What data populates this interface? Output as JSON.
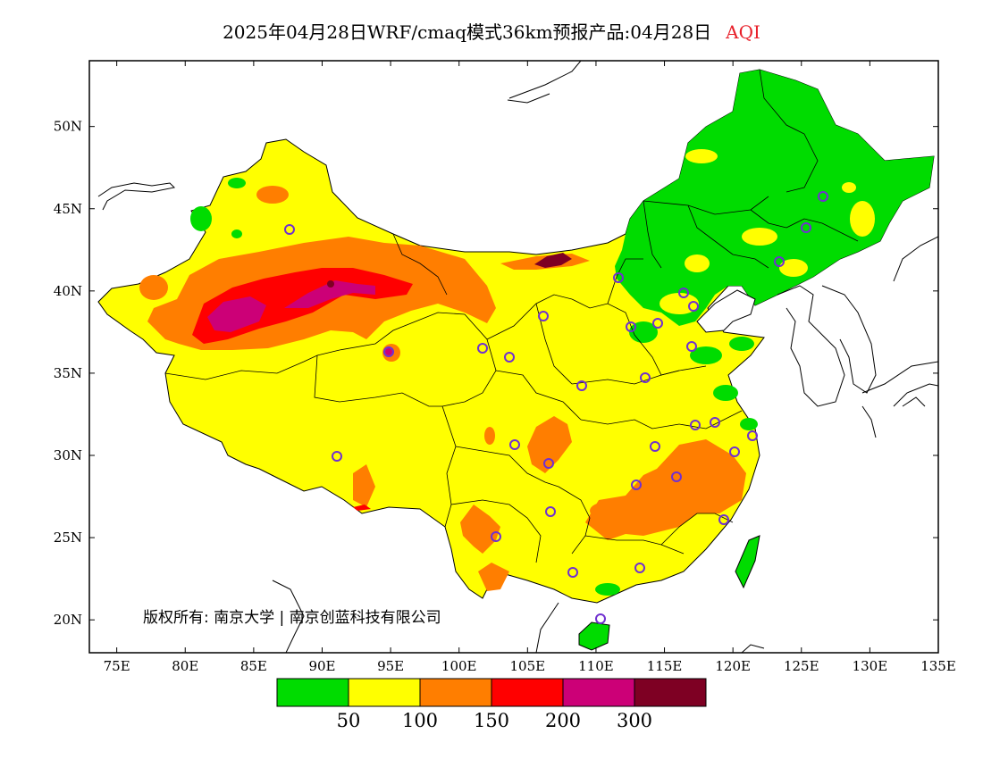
{
  "title": {
    "main": "2025年04月28日WRF/cmaq模式36km预报产品:04月28日",
    "variable": "AQI",
    "variable_color": "#e8202a"
  },
  "map": {
    "lon_range": [
      73,
      135
    ],
    "lat_range": [
      18,
      54
    ],
    "x_ticks": [
      "75E",
      "80E",
      "85E",
      "90E",
      "95E",
      "100E",
      "105E",
      "110E",
      "115E",
      "120E",
      "125E",
      "130E",
      "135E"
    ],
    "y_ticks": [
      "20N",
      "25N",
      "30N",
      "35N",
      "40N",
      "45N",
      "50N"
    ],
    "copyright": "版权所有: 南京大学 | 南京创蓝科技有限公司",
    "regions": {
      "northeast_green": "AQI 0-50",
      "central_south": "AQI 50-100",
      "tarim_basin": "AQI 150-300",
      "inner_mongolia_west": "AQI 300+",
      "sichuan_basin": "AQI 100-150",
      "hunan_jiangxi": "AQI 100-150"
    }
  },
  "legend": {
    "colors": [
      "#00dc00",
      "#ffff00",
      "#ff7e00",
      "#ff0000",
      "#cc0077",
      "#7e0023"
    ],
    "breaks": [
      "50",
      "100",
      "150",
      "200",
      "300"
    ]
  }
}
